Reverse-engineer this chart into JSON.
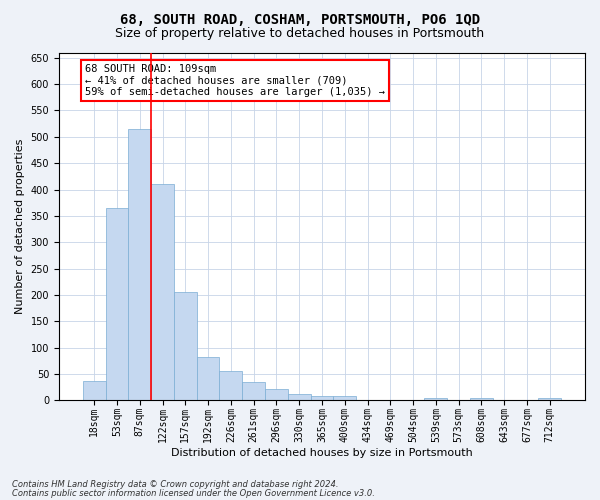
{
  "title": "68, SOUTH ROAD, COSHAM, PORTSMOUTH, PO6 1QD",
  "subtitle": "Size of property relative to detached houses in Portsmouth",
  "xlabel": "Distribution of detached houses by size in Portsmouth",
  "ylabel": "Number of detached properties",
  "categories": [
    "18sqm",
    "53sqm",
    "87sqm",
    "122sqm",
    "157sqm",
    "192sqm",
    "226sqm",
    "261sqm",
    "296sqm",
    "330sqm",
    "365sqm",
    "400sqm",
    "434sqm",
    "469sqm",
    "504sqm",
    "539sqm",
    "573sqm",
    "608sqm",
    "643sqm",
    "677sqm",
    "712sqm"
  ],
  "values": [
    37,
    365,
    515,
    410,
    205,
    82,
    55,
    35,
    22,
    12,
    8,
    8,
    1,
    1,
    1,
    4,
    0,
    4,
    0,
    0,
    4
  ],
  "bar_color": "#c5d8f0",
  "bar_edge_color": "#7badd4",
  "vline_color": "red",
  "annotation_text": "68 SOUTH ROAD: 109sqm\n← 41% of detached houses are smaller (709)\n59% of semi-detached houses are larger (1,035) →",
  "annotation_box_color": "white",
  "annotation_box_edge_color": "red",
  "ylim": [
    0,
    660
  ],
  "yticks": [
    0,
    50,
    100,
    150,
    200,
    250,
    300,
    350,
    400,
    450,
    500,
    550,
    600,
    650
  ],
  "footer1": "Contains HM Land Registry data © Crown copyright and database right 2024.",
  "footer2": "Contains public sector information licensed under the Open Government Licence v3.0.",
  "background_color": "#eef2f8",
  "plot_background_color": "white",
  "grid_color": "#c8d4e8",
  "title_fontsize": 10,
  "subtitle_fontsize": 9,
  "axis_label_fontsize": 8,
  "tick_fontsize": 7,
  "annotation_fontsize": 7.5,
  "footer_fontsize": 6
}
